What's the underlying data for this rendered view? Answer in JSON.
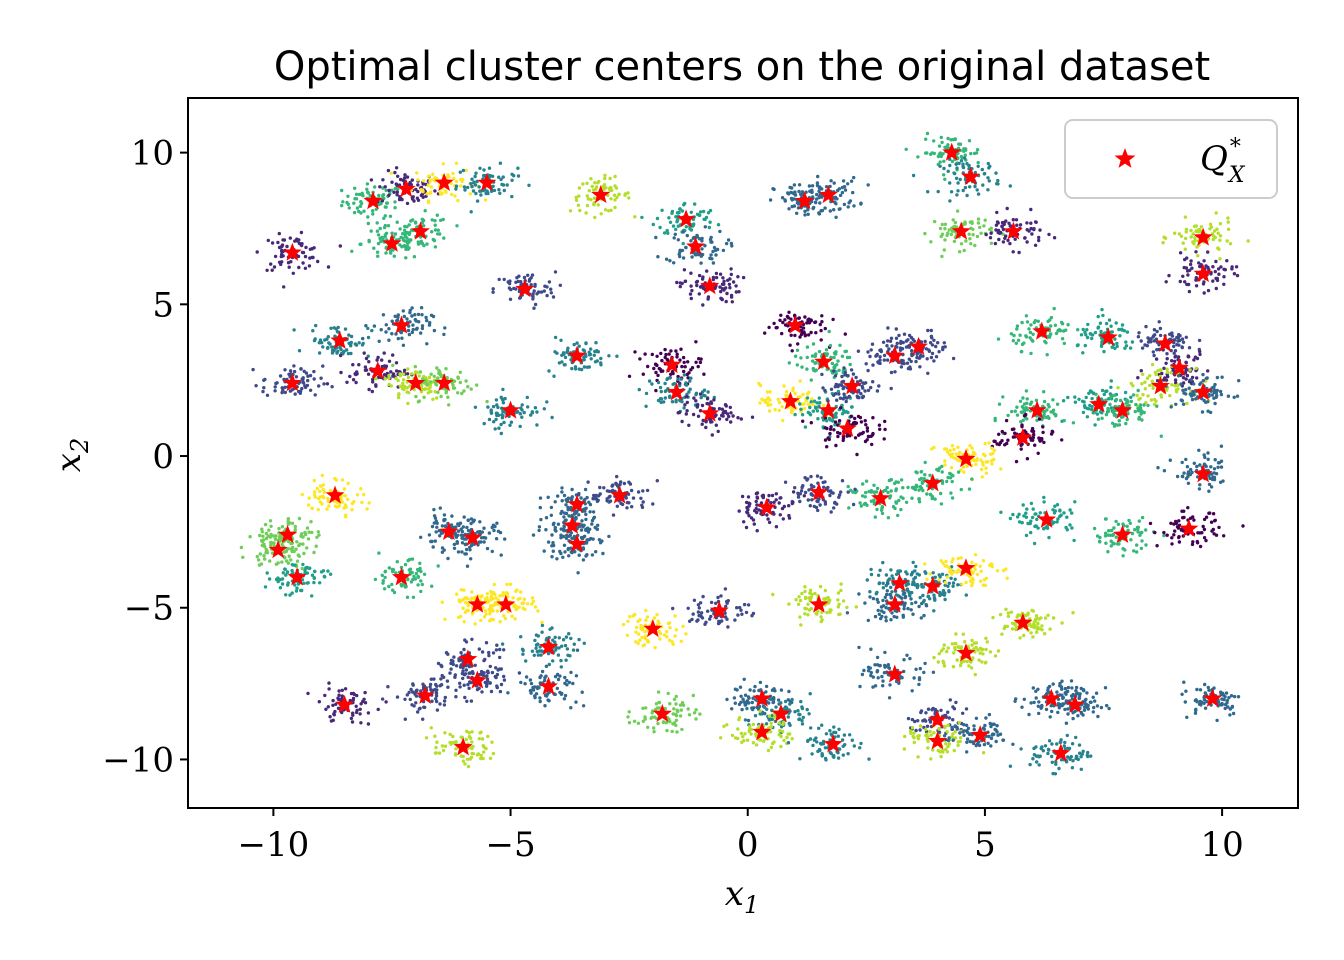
{
  "chart_data": {
    "type": "scatter",
    "title": "Optimal cluster centers on the original dataset",
    "xlabel": "x",
    "xlabel_sub": "1",
    "ylabel": "x",
    "ylabel_sub": "2",
    "xlim": [
      -11.8,
      11.6
    ],
    "ylim": [
      -11.6,
      11.8
    ],
    "xticks": [
      -10,
      -5,
      0,
      5,
      10
    ],
    "yticks": [
      -10,
      -5,
      0,
      5,
      10
    ],
    "xtick_labels": [
      "−10",
      "−5",
      "0",
      "5",
      "10"
    ],
    "ytick_labels": [
      "−10",
      "−5",
      "0",
      "5",
      "10"
    ],
    "grid": false,
    "legend": {
      "placement": "top-right",
      "label_main": "Q",
      "label_sup": "*",
      "label_sub": "X",
      "marker_color": "#ff0000"
    },
    "colormap": [
      "#440154",
      "#482878",
      "#3e4a89",
      "#31688e",
      "#26828e",
      "#1f9e89",
      "#35b779",
      "#6ece58",
      "#b5de2b",
      "#fde725"
    ],
    "center_marker": {
      "shape": "star",
      "color": "#ff0000"
    },
    "clusters": [
      {
        "x": -7.9,
        "y": 8.4,
        "c": 6
      },
      {
        "x": -7.2,
        "y": 8.8,
        "c": 1
      },
      {
        "x": -6.4,
        "y": 9.0,
        "c": 9
      },
      {
        "x": -5.5,
        "y": 9.0,
        "c": 4
      },
      {
        "x": -3.1,
        "y": 8.6,
        "c": 8
      },
      {
        "x": -7.5,
        "y": 7.0,
        "c": 6
      },
      {
        "x": -6.9,
        "y": 7.4,
        "c": 6
      },
      {
        "x": -9.6,
        "y": 6.7,
        "c": 1
      },
      {
        "x": -4.7,
        "y": 5.5,
        "c": 2
      },
      {
        "x": -1.3,
        "y": 7.8,
        "c": 5
      },
      {
        "x": -1.1,
        "y": 6.9,
        "c": 3
      },
      {
        "x": -0.8,
        "y": 5.6,
        "c": 1
      },
      {
        "x": 1.2,
        "y": 8.4,
        "c": 3
      },
      {
        "x": 1.7,
        "y": 8.6,
        "c": 3
      },
      {
        "x": 4.3,
        "y": 10.0,
        "c": 6
      },
      {
        "x": 4.7,
        "y": 9.2,
        "c": 4
      },
      {
        "x": 4.5,
        "y": 7.4,
        "c": 7
      },
      {
        "x": 5.6,
        "y": 7.4,
        "c": 1
      },
      {
        "x": 9.6,
        "y": 7.2,
        "c": 8
      },
      {
        "x": 9.6,
        "y": 6.0,
        "c": 1
      },
      {
        "x": -8.6,
        "y": 3.8,
        "c": 4
      },
      {
        "x": -7.3,
        "y": 4.3,
        "c": 3
      },
      {
        "x": -9.6,
        "y": 2.4,
        "c": 2
      },
      {
        "x": -7.8,
        "y": 2.8,
        "c": 1
      },
      {
        "x": -7.0,
        "y": 2.4,
        "c": 8
      },
      {
        "x": -6.4,
        "y": 2.4,
        "c": 7
      },
      {
        "x": -5.0,
        "y": 1.5,
        "c": 4
      },
      {
        "x": -3.6,
        "y": 3.3,
        "c": 4
      },
      {
        "x": -1.6,
        "y": 3.0,
        "c": 0
      },
      {
        "x": -1.5,
        "y": 2.1,
        "c": 4
      },
      {
        "x": -0.8,
        "y": 1.4,
        "c": 1
      },
      {
        "x": 1.0,
        "y": 4.3,
        "c": 0
      },
      {
        "x": 1.6,
        "y": 3.1,
        "c": 6
      },
      {
        "x": 0.9,
        "y": 1.8,
        "c": 9
      },
      {
        "x": 1.7,
        "y": 1.5,
        "c": 5
      },
      {
        "x": 2.2,
        "y": 2.3,
        "c": 2
      },
      {
        "x": 2.1,
        "y": 0.9,
        "c": 0
      },
      {
        "x": 3.1,
        "y": 3.3,
        "c": 2
      },
      {
        "x": 3.6,
        "y": 3.6,
        "c": 2
      },
      {
        "x": 6.2,
        "y": 4.1,
        "c": 6
      },
      {
        "x": 7.6,
        "y": 3.9,
        "c": 5
      },
      {
        "x": 8.8,
        "y": 3.7,
        "c": 2
      },
      {
        "x": 9.1,
        "y": 2.9,
        "c": 1
      },
      {
        "x": 8.7,
        "y": 2.3,
        "c": 8
      },
      {
        "x": 9.6,
        "y": 2.1,
        "c": 3
      },
      {
        "x": 7.4,
        "y": 1.7,
        "c": 5
      },
      {
        "x": 7.9,
        "y": 1.5,
        "c": 6
      },
      {
        "x": 6.1,
        "y": 1.5,
        "c": 6
      },
      {
        "x": 5.8,
        "y": 0.6,
        "c": 0
      },
      {
        "x": 4.6,
        "y": -0.1,
        "c": 9
      },
      {
        "x": 3.9,
        "y": -0.9,
        "c": 6
      },
      {
        "x": 2.8,
        "y": -1.4,
        "c": 6
      },
      {
        "x": 1.5,
        "y": -1.2,
        "c": 2
      },
      {
        "x": 0.4,
        "y": -1.7,
        "c": 1
      },
      {
        "x": -8.7,
        "y": -1.3,
        "c": 9
      },
      {
        "x": -9.7,
        "y": -2.6,
        "c": 7
      },
      {
        "x": -9.9,
        "y": -3.1,
        "c": 7
      },
      {
        "x": -9.5,
        "y": -4.0,
        "c": 5
      },
      {
        "x": -7.3,
        "y": -4.0,
        "c": 6
      },
      {
        "x": -6.3,
        "y": -2.5,
        "c": 3
      },
      {
        "x": -5.8,
        "y": -2.7,
        "c": 3
      },
      {
        "x": -3.6,
        "y": -1.6,
        "c": 3
      },
      {
        "x": -3.7,
        "y": -2.3,
        "c": 3
      },
      {
        "x": -3.6,
        "y": -2.9,
        "c": 3
      },
      {
        "x": -2.7,
        "y": -1.3,
        "c": 2
      },
      {
        "x": 6.3,
        "y": -2.1,
        "c": 5
      },
      {
        "x": 7.9,
        "y": -2.6,
        "c": 6
      },
      {
        "x": 9.3,
        "y": -2.4,
        "c": 0
      },
      {
        "x": 9.6,
        "y": -0.6,
        "c": 3
      },
      {
        "x": -5.7,
        "y": -4.9,
        "c": 9
      },
      {
        "x": -5.1,
        "y": -4.9,
        "c": 9
      },
      {
        "x": -2.0,
        "y": -5.7,
        "c": 9
      },
      {
        "x": -0.6,
        "y": -5.1,
        "c": 2
      },
      {
        "x": 1.5,
        "y": -4.9,
        "c": 8
      },
      {
        "x": 3.2,
        "y": -4.2,
        "c": 4
      },
      {
        "x": 3.1,
        "y": -4.9,
        "c": 3
      },
      {
        "x": 3.9,
        "y": -4.3,
        "c": 4
      },
      {
        "x": 4.6,
        "y": -3.7,
        "c": 9
      },
      {
        "x": 5.8,
        "y": -5.5,
        "c": 8
      },
      {
        "x": 4.6,
        "y": -6.5,
        "c": 8
      },
      {
        "x": 3.1,
        "y": -7.2,
        "c": 3
      },
      {
        "x": -5.9,
        "y": -6.7,
        "c": 2
      },
      {
        "x": -5.7,
        "y": -7.4,
        "c": 2
      },
      {
        "x": -4.2,
        "y": -6.3,
        "c": 4
      },
      {
        "x": -4.2,
        "y": -7.6,
        "c": 3
      },
      {
        "x": -6.8,
        "y": -7.9,
        "c": 2
      },
      {
        "x": -8.5,
        "y": -8.2,
        "c": 1
      },
      {
        "x": -6.0,
        "y": -9.6,
        "c": 8
      },
      {
        "x": -1.8,
        "y": -8.5,
        "c": 7
      },
      {
        "x": 0.3,
        "y": -8.0,
        "c": 3
      },
      {
        "x": 0.7,
        "y": -8.5,
        "c": 4
      },
      {
        "x": 0.3,
        "y": -9.1,
        "c": 8
      },
      {
        "x": 1.8,
        "y": -9.5,
        "c": 4
      },
      {
        "x": 4.0,
        "y": -8.7,
        "c": 2
      },
      {
        "x": 4.0,
        "y": -9.4,
        "c": 8
      },
      {
        "x": 4.9,
        "y": -9.2,
        "c": 3
      },
      {
        "x": 6.4,
        "y": -8.0,
        "c": 3
      },
      {
        "x": 6.9,
        "y": -8.2,
        "c": 3
      },
      {
        "x": 6.6,
        "y": -9.8,
        "c": 4
      },
      {
        "x": 9.8,
        "y": -8.0,
        "c": 3
      }
    ]
  }
}
